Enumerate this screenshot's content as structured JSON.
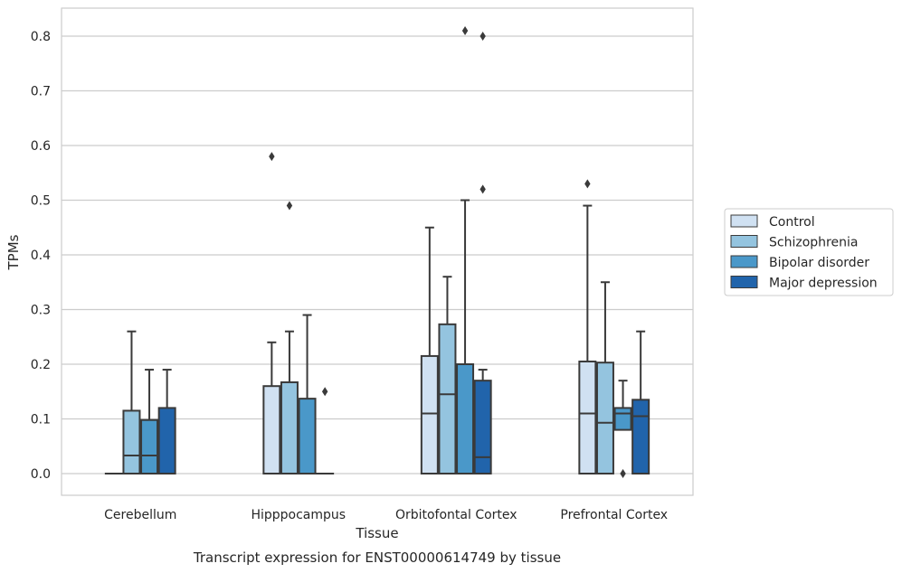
{
  "chart_data": {
    "type": "box",
    "title": "",
    "caption": "Transcript expression for ENST00000614749 by tissue",
    "xlabel": "Tissue",
    "ylabel": "TPMs",
    "ylim": [
      -0.04,
      0.855
    ],
    "yticks": [
      0.0,
      0.1,
      0.2,
      0.3,
      0.4,
      0.5,
      0.6,
      0.7,
      0.8
    ],
    "grid": true,
    "legend_position": "right",
    "categories": [
      "Cerebellum",
      "Hipppocampus",
      "Orbitofontal Cortex",
      "Prefrontal Cortex"
    ],
    "series": [
      {
        "name": "Control",
        "color": "#d0e1f2",
        "boxes": [
          {
            "whislo": 0.0,
            "q1": 0.0,
            "med": 0.0,
            "q3": 0.0,
            "whishi": 0.0,
            "fliers": []
          },
          {
            "whislo": 0.0,
            "q1": 0.0,
            "med": 0.0,
            "q3": 0.16,
            "whishi": 0.24,
            "fliers": [
              0.58
            ]
          },
          {
            "whislo": 0.0,
            "q1": 0.0,
            "med": 0.11,
            "q3": 0.215,
            "whishi": 0.45,
            "fliers": []
          },
          {
            "whislo": 0.0,
            "q1": 0.0,
            "med": 0.11,
            "q3": 0.205,
            "whishi": 0.49,
            "fliers": [
              0.53
            ]
          }
        ]
      },
      {
        "name": "Schizophrenia",
        "color": "#94c4df",
        "boxes": [
          {
            "whislo": 0.0,
            "q1": 0.0,
            "med": 0.033,
            "q3": 0.115,
            "whishi": 0.26,
            "fliers": []
          },
          {
            "whislo": 0.0,
            "q1": 0.0,
            "med": 0.0,
            "q3": 0.167,
            "whishi": 0.26,
            "fliers": [
              0.49
            ]
          },
          {
            "whislo": 0.0,
            "q1": 0.0,
            "med": 0.145,
            "q3": 0.273,
            "whishi": 0.36,
            "fliers": []
          },
          {
            "whislo": 0.0,
            "q1": 0.0,
            "med": 0.093,
            "q3": 0.203,
            "whishi": 0.35,
            "fliers": []
          }
        ]
      },
      {
        "name": "Bipolar disorder",
        "color": "#4a98c9",
        "boxes": [
          {
            "whislo": 0.0,
            "q1": 0.0,
            "med": 0.033,
            "q3": 0.098,
            "whishi": 0.19,
            "fliers": []
          },
          {
            "whislo": 0.0,
            "q1": 0.0,
            "med": 0.0,
            "q3": 0.137,
            "whishi": 0.29,
            "fliers": []
          },
          {
            "whislo": 0.0,
            "q1": 0.0,
            "med": 0.0,
            "q3": 0.2,
            "whishi": 0.5,
            "fliers": [
              0.81
            ]
          },
          {
            "whislo": 0.08,
            "q1": 0.08,
            "med": 0.11,
            "q3": 0.12,
            "whishi": 0.17,
            "fliers": [
              0.0
            ]
          }
        ]
      },
      {
        "name": "Major depression",
        "color": "#2164ab",
        "boxes": [
          {
            "whislo": 0.0,
            "q1": 0.0,
            "med": 0.0,
            "q3": 0.12,
            "whishi": 0.19,
            "fliers": []
          },
          {
            "whislo": 0.0,
            "q1": 0.0,
            "med": 0.0,
            "q3": 0.0,
            "whishi": 0.0,
            "fliers": [
              0.15
            ]
          },
          {
            "whislo": 0.0,
            "q1": 0.0,
            "med": 0.03,
            "q3": 0.17,
            "whishi": 0.19,
            "fliers": [
              0.52,
              0.8
            ]
          },
          {
            "whislo": 0.0,
            "q1": 0.0,
            "med": 0.105,
            "q3": 0.135,
            "whishi": 0.26,
            "fliers": []
          }
        ]
      }
    ]
  }
}
